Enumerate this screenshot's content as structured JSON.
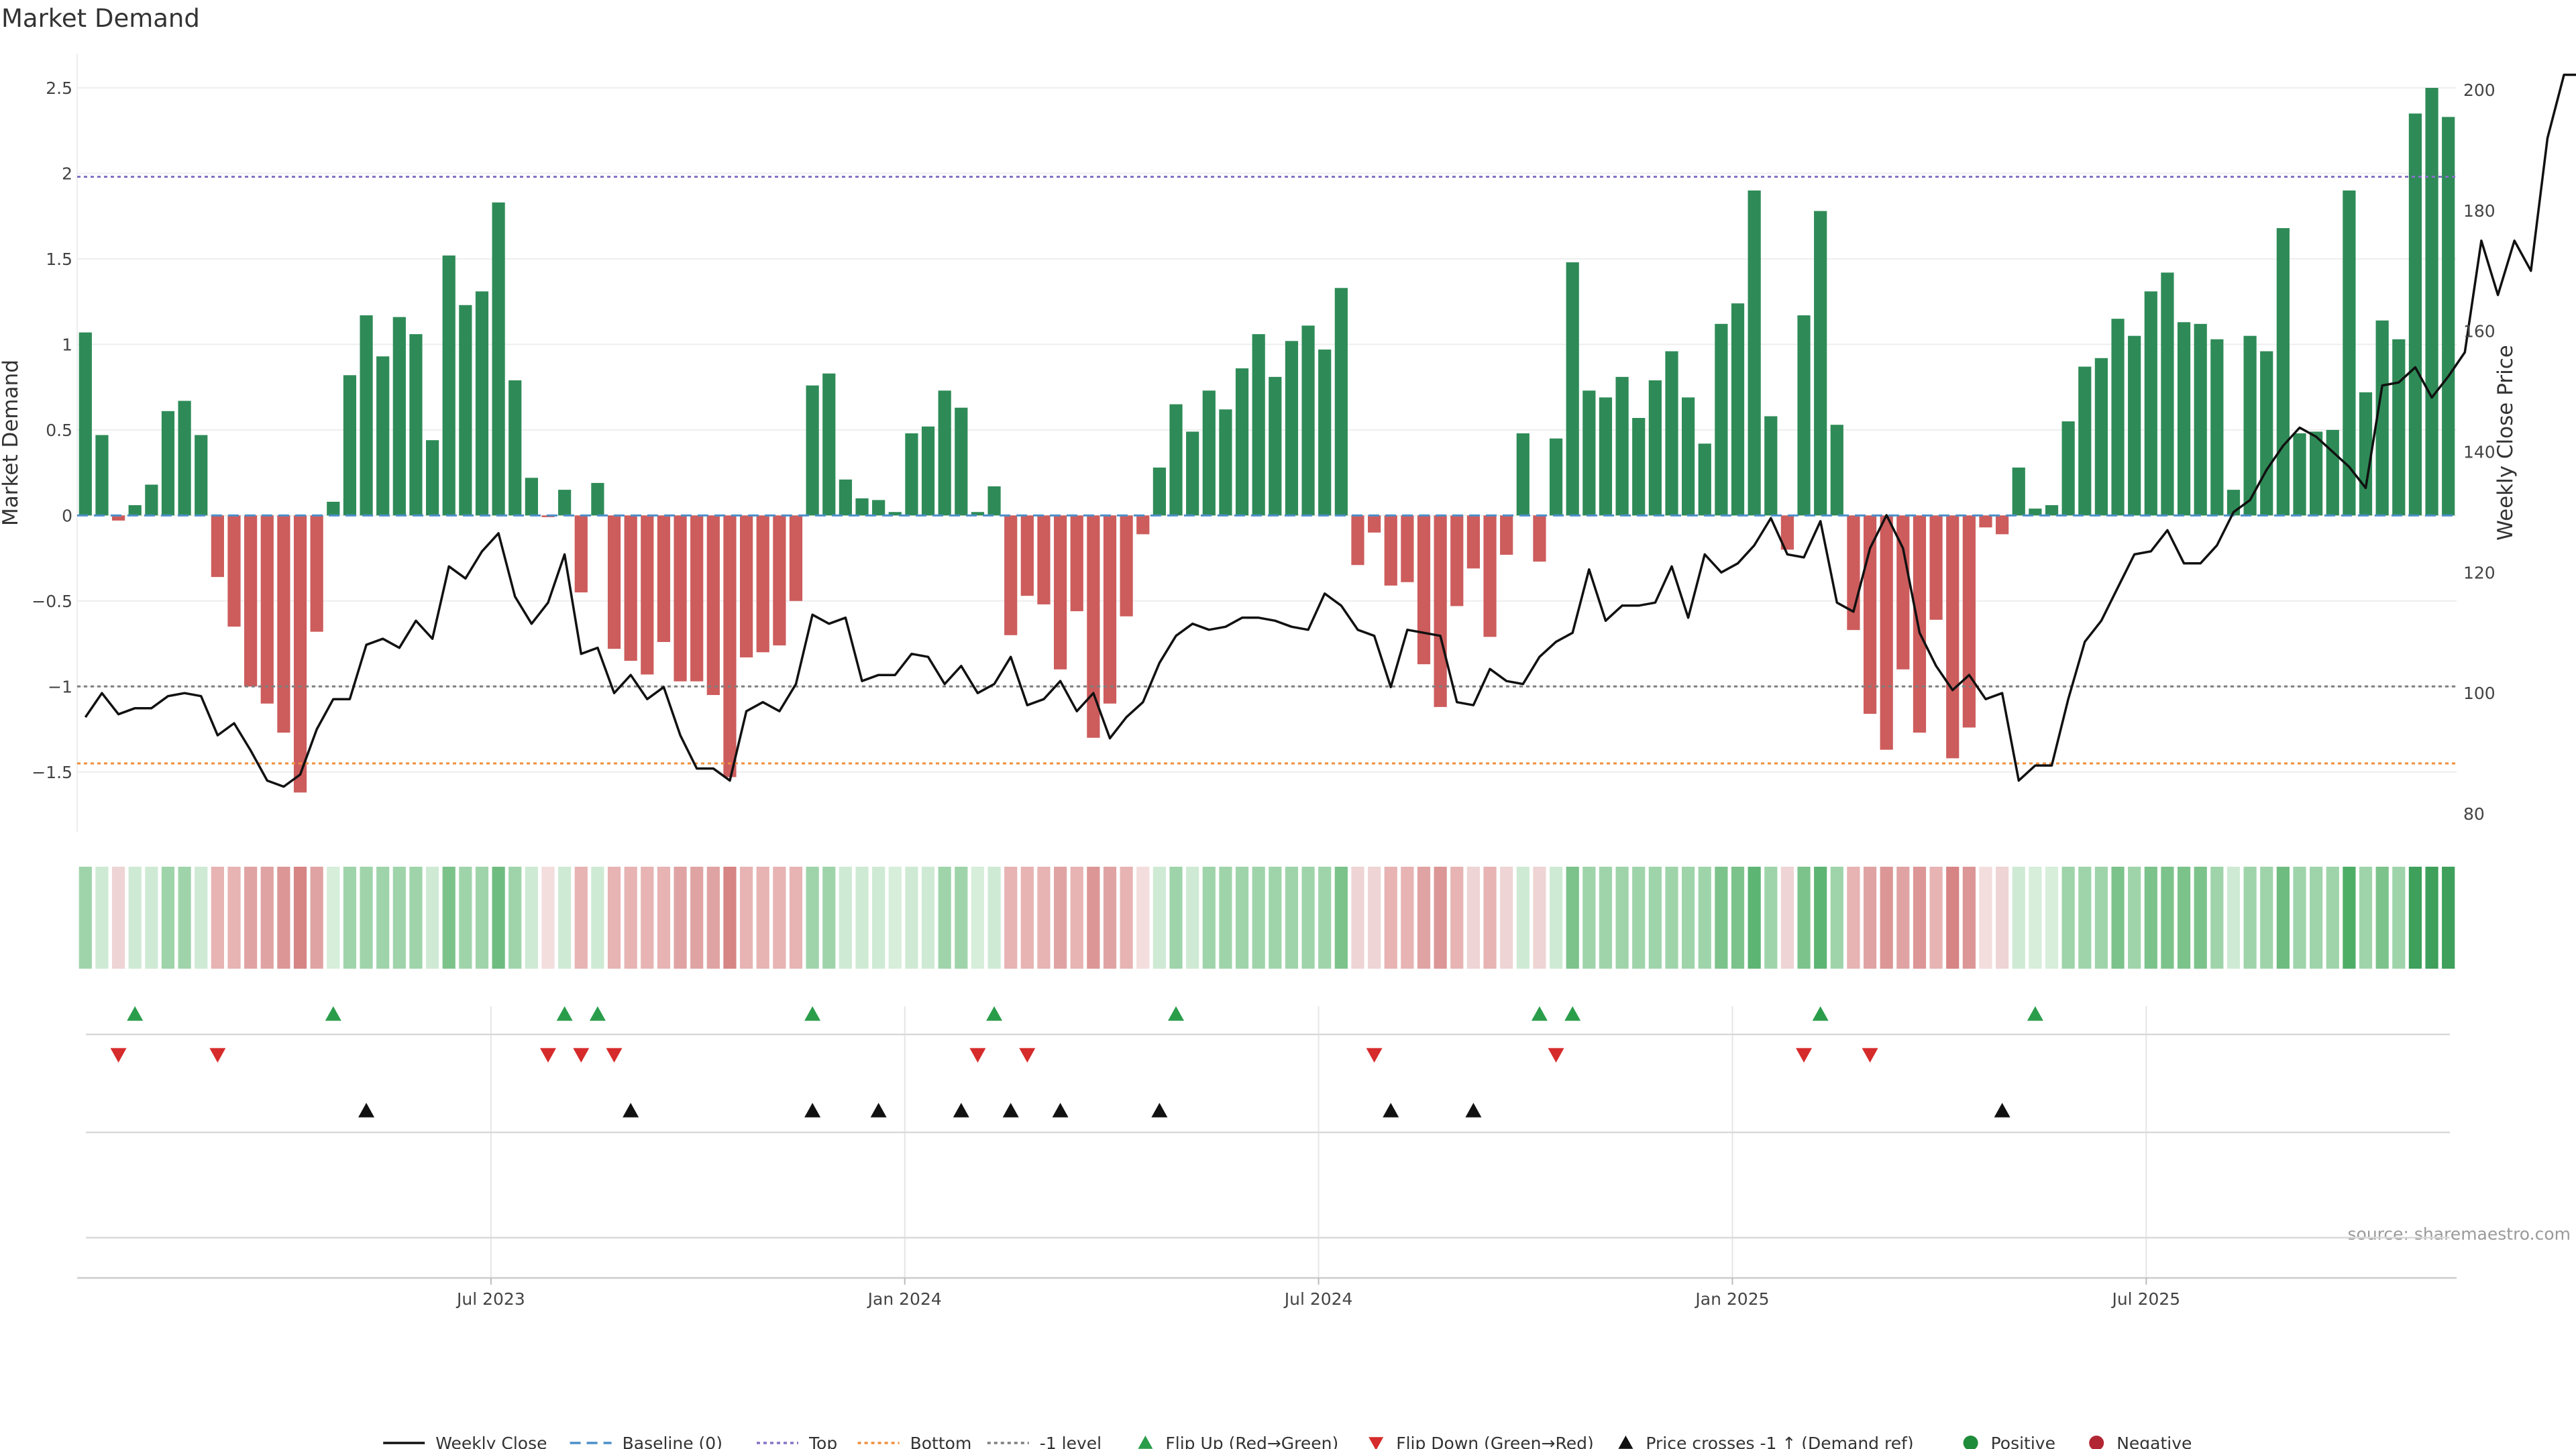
{
  "chart_data": {
    "type": "bar",
    "title": "Market Demand",
    "ylabel": "Market Demand",
    "y2label": "Weekly Close Price",
    "ylim": [
      -1.85,
      2.7
    ],
    "y2lim": [
      77,
      206
    ],
    "yticks": [
      -1.5,
      -1,
      -0.5,
      0,
      0.5,
      1,
      1.5,
      2,
      2.5
    ],
    "ytick_labels": [
      "−1.5",
      "−1",
      "−0.5",
      "0",
      "0.5",
      "1",
      "1.5",
      "2",
      "2.5"
    ],
    "y2ticks": [
      80,
      100,
      120,
      140,
      160,
      180,
      200
    ],
    "y2tick_labels": [
      "80",
      "100",
      "120",
      "140",
      "160",
      "180",
      "200"
    ],
    "x_months_from_jan2023": [
      0,
      34.5
    ],
    "x_ticks": [
      {
        "label": "Jul 2023",
        "m": 6
      },
      {
        "label": "Jan 2024",
        "m": 12
      },
      {
        "label": "Jul 2024",
        "m": 18
      },
      {
        "label": "Jan 2025",
        "m": 24
      },
      {
        "label": "Jul 2025",
        "m": 30
      }
    ],
    "levels": {
      "top": 1.98,
      "bottom": -1.45,
      "minus_one": -1
    },
    "demand": [
      1.07,
      0.47,
      -0.03,
      0.06,
      0.18,
      0.61,
      0.67,
      0.47,
      -0.36,
      -0.65,
      -1.0,
      -1.1,
      -1.27,
      -1.62,
      -0.68,
      0.08,
      0.82,
      1.17,
      0.93,
      1.16,
      1.06,
      0.44,
      1.52,
      1.23,
      1.31,
      1.83,
      0.79,
      0.22,
      -0.01,
      0.15,
      -0.45,
      0.19,
      -0.78,
      -0.85,
      -0.93,
      -0.74,
      -0.97,
      -0.97,
      -1.05,
      -1.53,
      -0.83,
      -0.8,
      -0.76,
      -0.5,
      0.76,
      0.83,
      0.21,
      0.1,
      0.09,
      0.02,
      0.48,
      0.52,
      0.73,
      0.63,
      0.02,
      0.17,
      -0.7,
      -0.47,
      -0.52,
      -0.9,
      -0.56,
      -1.3,
      -1.1,
      -0.59,
      -0.11,
      0.28,
      0.65,
      0.49,
      0.73,
      0.62,
      0.86,
      1.06,
      0.81,
      1.02,
      1.11,
      0.97,
      1.33,
      -0.29,
      -0.1,
      -0.41,
      -0.39,
      -0.87,
      -1.12,
      -0.53,
      -0.31,
      -0.71,
      -0.23,
      0.48,
      -0.27,
      0.45,
      1.48,
      0.73,
      0.69,
      0.81,
      0.57,
      0.79,
      0.96,
      0.69,
      0.42,
      1.12,
      1.24,
      1.9,
      0.58,
      -0.2,
      1.17,
      1.78,
      0.53,
      -0.67,
      -1.16,
      -1.37,
      -0.9,
      -1.27,
      -0.61,
      -1.42,
      -1.24,
      -0.07,
      -0.11,
      0.28,
      0.04,
      0.06,
      0.55,
      0.87,
      0.92,
      1.15,
      1.05,
      1.31,
      1.42,
      1.13,
      1.12,
      1.03,
      0.15,
      1.05,
      0.96,
      1.68,
      0.48,
      0.49,
      0.5,
      1.9,
      0.72,
      1.14,
      1.03,
      2.35,
      2.5,
      2.33
    ],
    "weekly_close": [
      96,
      100,
      96.5,
      97.5,
      97.5,
      99.5,
      100,
      99.5,
      93,
      95,
      90.5,
      85.5,
      84.5,
      86.5,
      94,
      99,
      99,
      108,
      109,
      107.5,
      112,
      109,
      121,
      119,
      123.5,
      126.5,
      116,
      111.5,
      115,
      123,
      106.5,
      107.5,
      100,
      103,
      99,
      101,
      93,
      87.5,
      87.5,
      85.5,
      97,
      98.5,
      97,
      101.5,
      113,
      111.5,
      112.5,
      102,
      103,
      103,
      106.5,
      106,
      101.5,
      104.5,
      100,
      101.5,
      106,
      98,
      99,
      102,
      97,
      100,
      92.5,
      96,
      98.5,
      105,
      109.5,
      111.5,
      110.5,
      111,
      112.5,
      112.5,
      112,
      111,
      110.5,
      116.5,
      114.5,
      110.5,
      109.5,
      101,
      110.5,
      110,
      109.5,
      98.5,
      98,
      104,
      102,
      101.5,
      106,
      108.5,
      110,
      120.5,
      112,
      114.5,
      114.5,
      115,
      121,
      112.5,
      123,
      120,
      121.5,
      124.5,
      129,
      123,
      122.5,
      128.5,
      115,
      113.5,
      124,
      129.5,
      124,
      110,
      104.5,
      100.5,
      103,
      99,
      100,
      85.5,
      88,
      88,
      99,
      108.5,
      112,
      117.5,
      123,
      123.5,
      127,
      121.5,
      121.5,
      124.5,
      130,
      132,
      137,
      141,
      144,
      142.5,
      140,
      137.5,
      134,
      151,
      151.5,
      154,
      149,
      152.5,
      156.5,
      175,
      166,
      175,
      170,
      192,
      202.5,
      202.5
    ],
    "heat_colors": [
      "#9fd4aa",
      "#cfead4",
      "#eed4d4",
      "#cfead4",
      "#cfead4",
      "#9fd4aa",
      "#9fd4aa",
      "#cfead4",
      "#e7b3b3",
      "#e7b3b3",
      "#e0a3a3",
      "#e0a3a3",
      "#dc9696",
      "#d78484",
      "#e0a3a3",
      "#d6eeda",
      "#9fd4aa",
      "#9fd4aa",
      "#9fd4aa",
      "#9fd4aa",
      "#9fd4aa",
      "#cfead4",
      "#7cc38b",
      "#9fd4aa",
      "#9fd4aa",
      "#6fbc80",
      "#9fd4aa",
      "#cfead4",
      "#f3dddd",
      "#cfead4",
      "#e7b3b3",
      "#cfead4",
      "#e7b3b3",
      "#e7b3b3",
      "#e7b3b3",
      "#e7b3b3",
      "#e0a3a3",
      "#e0a3a3",
      "#e0a3a3",
      "#d78484",
      "#e7b3b3",
      "#e7b3b3",
      "#e7b3b3",
      "#e7b3b3",
      "#9fd4aa",
      "#9fd4aa",
      "#cfead4",
      "#cfead4",
      "#cfead4",
      "#d6eeda",
      "#cfead4",
      "#cfead4",
      "#9fd4aa",
      "#9fd4aa",
      "#d6eeda",
      "#cfead4",
      "#e7b3b3",
      "#e7b3b3",
      "#e7b3b3",
      "#e0a3a3",
      "#e7b3b3",
      "#dc9696",
      "#e0a3a3",
      "#e7b3b3",
      "#f3dddd",
      "#cfead4",
      "#9fd4aa",
      "#cfead4",
      "#9fd4aa",
      "#9fd4aa",
      "#9fd4aa",
      "#9fd4aa",
      "#9fd4aa",
      "#9fd4aa",
      "#9fd4aa",
      "#9fd4aa",
      "#7cc38b",
      "#eed4d4",
      "#eed4d4",
      "#e7b3b3",
      "#e7b3b3",
      "#e0a3a3",
      "#dc9696",
      "#e7b3b3",
      "#eed4d4",
      "#e7b3b3",
      "#eed4d4",
      "#cfead4",
      "#eed4d4",
      "#cfead4",
      "#7cc38b",
      "#9fd4aa",
      "#9fd4aa",
      "#9fd4aa",
      "#9fd4aa",
      "#9fd4aa",
      "#9fd4aa",
      "#9fd4aa",
      "#9fd4aa",
      "#7cc38b",
      "#7cc38b",
      "#5db574",
      "#9fd4aa",
      "#eed4d4",
      "#7cc38b",
      "#5db574",
      "#9fd4aa",
      "#e7b3b3",
      "#e0a3a3",
      "#dc9696",
      "#e0a3a3",
      "#dc9696",
      "#e7b3b3",
      "#d78484",
      "#dc9696",
      "#f3dddd",
      "#eed4d4",
      "#cfead4",
      "#d6eeda",
      "#d6eeda",
      "#9fd4aa",
      "#9fd4aa",
      "#9fd4aa",
      "#7cc38b",
      "#9fd4aa",
      "#7cc38b",
      "#7cc38b",
      "#7cc38b",
      "#7cc38b",
      "#9fd4aa",
      "#cfead4",
      "#9fd4aa",
      "#9fd4aa",
      "#6fbc80",
      "#9fd4aa",
      "#9fd4aa",
      "#9fd4aa",
      "#4fae66",
      "#9fd4aa",
      "#7cc38b",
      "#9fd4aa",
      "#3ea05a",
      "#3ea05a",
      "#3ea05a"
    ],
    "flip_up": [
      3,
      15,
      29,
      31,
      44,
      55,
      66,
      88,
      90,
      105,
      118
    ],
    "flip_down": [
      2,
      8,
      28,
      30,
      32,
      54,
      57,
      78,
      89,
      104,
      108
    ],
    "price_cross": [
      17,
      33,
      44,
      48,
      53,
      56,
      59,
      65,
      79,
      84,
      116
    ],
    "legend": [
      {
        "label": "Weekly Close",
        "kind": "line",
        "color": "#111111",
        "dash": ""
      },
      {
        "label": "Baseline (0)",
        "kind": "line",
        "color": "#4c8fc9",
        "dash": "16,9"
      },
      {
        "label": "Top",
        "kind": "line",
        "color": "#8573c4",
        "dash": "5,5"
      },
      {
        "label": "Bottom",
        "kind": "line",
        "color": "#ef8f3d",
        "dash": "5,5"
      },
      {
        "label": "-1 level",
        "kind": "line",
        "color": "#7e7e7e",
        "dash": "5,5"
      },
      {
        "label": "Flip Up (Red→Green)",
        "kind": "up",
        "color": "#2a9d4b"
      },
      {
        "label": "Flip Down (Green→Red)",
        "kind": "down",
        "color": "#d62b2b"
      },
      {
        "label": "Price crosses -1 ↑ (Demand ref)",
        "kind": "up",
        "color": "#111111"
      },
      {
        "label": "Positive",
        "kind": "dot",
        "color": "#1e8c3a"
      },
      {
        "label": "Negative",
        "kind": "dot",
        "color": "#b22634"
      }
    ],
    "colors": {
      "positive_bar": "#2e8b57",
      "negative_bar": "#cd5c5c",
      "up_marker": "#2a9d4b",
      "down_marker": "#d62b2b",
      "cross_marker": "#111111"
    }
  },
  "source": "source: sharemaestro.com"
}
